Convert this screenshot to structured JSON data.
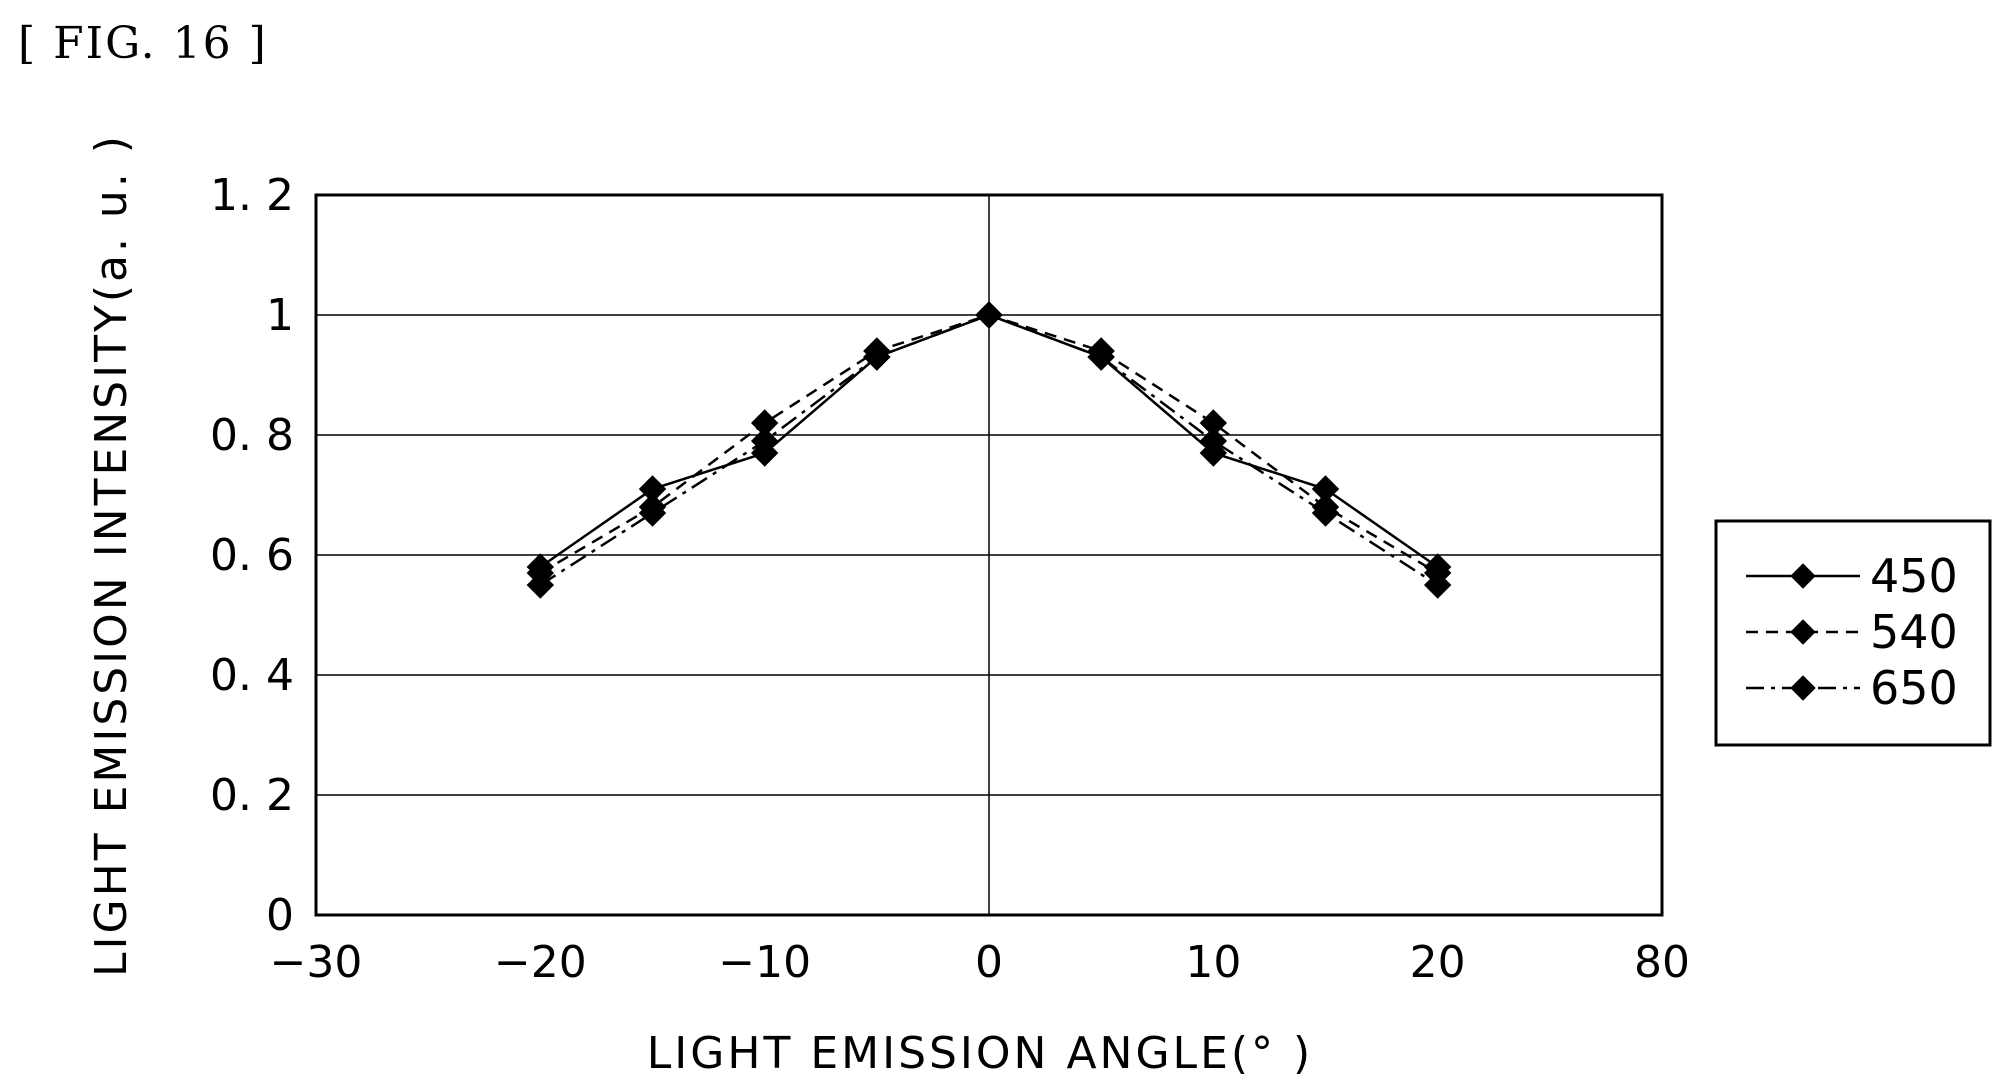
{
  "figure_label": "[ FIG. 16 ]",
  "chart_data": {
    "type": "line",
    "xlabel": "LIGHT EMISSION ANGLE(°  )",
    "ylabel": "LIGHT EMISSION INTENSITY(a. u. )",
    "x_ticks": [
      "−30",
      "−20",
      "−10",
      "0",
      "10",
      "20",
      "80"
    ],
    "y_ticks": [
      "0",
      "0. 2",
      "0. 4",
      "0. 6",
      "0. 8",
      "1",
      "1. 2"
    ],
    "ylim": [
      0,
      1.2
    ],
    "grid": true,
    "legend_position": "right",
    "x": [
      -20,
      -15,
      -10,
      -5,
      0,
      5,
      10,
      15,
      20
    ],
    "series": [
      {
        "name": "450",
        "line_style": "solid",
        "values": [
          0.58,
          0.71,
          0.77,
          0.93,
          1.0,
          0.93,
          0.77,
          0.71,
          0.58
        ]
      },
      {
        "name": "540",
        "line_style": "dashed",
        "values": [
          0.57,
          0.68,
          0.82,
          0.94,
          1.0,
          0.94,
          0.82,
          0.68,
          0.57
        ]
      },
      {
        "name": "650",
        "line_style": "dash-dot",
        "values": [
          0.55,
          0.67,
          0.79,
          0.93,
          1.0,
          0.93,
          0.79,
          0.67,
          0.55
        ]
      }
    ]
  }
}
